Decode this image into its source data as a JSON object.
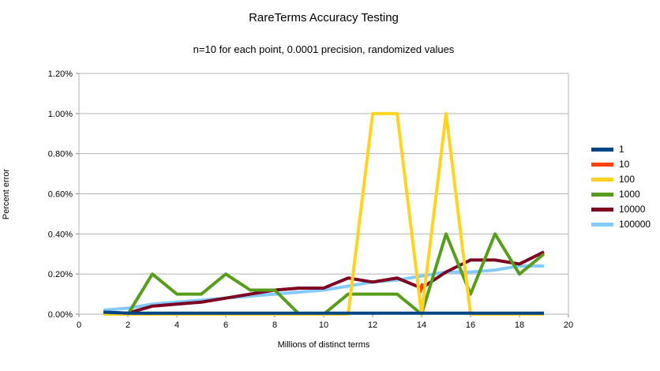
{
  "chart_data": {
    "type": "line",
    "title": "RareTerms Accuracy Testing",
    "subtitle": "n=10 for each point, 0.0001 precision, randomized values",
    "xlabel": "Millions of distinct terms",
    "ylabel": "Percent error",
    "x_range": [
      0,
      20
    ],
    "y_range_pct": [
      0,
      1.2
    ],
    "x_ticks": [
      "0",
      "2",
      "4",
      "6",
      "8",
      "10",
      "12",
      "14",
      "16",
      "18",
      "20"
    ],
    "y_ticks": [
      "0.00%",
      "0.20%",
      "0.40%",
      "0.60%",
      "0.80%",
      "1.00%",
      "1.20%"
    ],
    "grid": "horizontal",
    "legend_position": "right",
    "x": [
      1,
      2,
      3,
      4,
      5,
      6,
      7,
      8,
      9,
      10,
      11,
      12,
      13,
      14,
      15,
      16,
      17,
      18,
      19
    ],
    "series": [
      {
        "name": "1",
        "color": "#004586",
        "values": [
          0.01,
          0.005,
          0.005,
          0.005,
          0.005,
          0.005,
          0.005,
          0.005,
          0.005,
          0.005,
          0.005,
          0.005,
          0.005,
          0.005,
          0.005,
          0.005,
          0.005,
          0.005,
          0.005
        ]
      },
      {
        "name": "10",
        "color": "#FF420E",
        "values": [
          null,
          null,
          null,
          null,
          null,
          null,
          null,
          null,
          null,
          null,
          null,
          null,
          null,
          0.13,
          null,
          null,
          null,
          null,
          null
        ]
      },
      {
        "name": "100",
        "color": "#FFD320",
        "values": [
          0,
          0,
          0,
          0,
          0,
          0,
          0,
          0,
          0,
          0,
          0,
          1.0,
          1.0,
          0,
          1.0,
          0,
          0,
          0,
          0
        ]
      },
      {
        "name": "1000",
        "color": "#579D1C",
        "values": [
          0.01,
          0,
          0.2,
          0.1,
          0.1,
          0.2,
          0.12,
          0.12,
          0,
          0,
          0.1,
          0.1,
          0.1,
          0,
          0.4,
          0.1,
          0.4,
          0.2,
          0.3
        ]
      },
      {
        "name": "10000",
        "color": "#7E0021",
        "values": [
          0.01,
          0.005,
          0.04,
          0.05,
          0.06,
          0.08,
          0.1,
          0.12,
          0.13,
          0.13,
          0.18,
          0.16,
          0.18,
          0.13,
          0.21,
          0.27,
          0.27,
          0.25,
          0.31
        ]
      },
      {
        "name": "100000",
        "color": "#83CAFF",
        "values": [
          0.02,
          0.03,
          0.05,
          0.06,
          0.07,
          0.08,
          0.09,
          0.1,
          0.11,
          0.12,
          0.14,
          0.16,
          0.17,
          0.19,
          0.21,
          0.21,
          0.22,
          0.24,
          0.24
        ]
      }
    ],
    "draw_order": [
      "100000",
      "10000",
      "1000",
      "10",
      "100",
      "1"
    ],
    "colors": {
      "grid": "#b3b3b3",
      "plot_border": "#b3b3b3",
      "tick": "#808080",
      "text": "#000000",
      "background": "#ffffff"
    }
  }
}
